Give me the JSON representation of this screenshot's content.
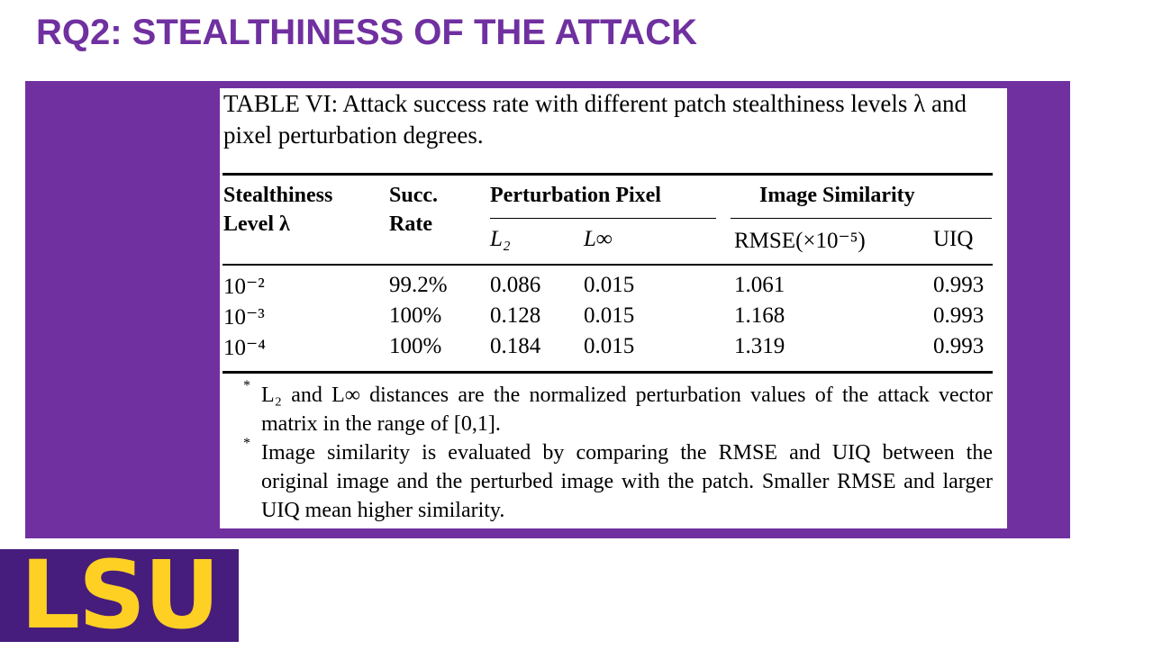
{
  "title": "RQ2: STEALTHINESS OF THE ATTACK",
  "table": {
    "caption": "TABLE VI: Attack success rate with different patch stealthiness levels λ and pixel perturbation degrees.",
    "header": {
      "stealthiness": "Stealthiness Level λ",
      "succ_rate": "Succ. Rate",
      "perturbation": "Perturbation Pixel",
      "similarity": "Image Similarity"
    },
    "subheader": [
      "L₂",
      "L∞",
      "RMSE(×10⁻⁵)",
      "UIQ"
    ],
    "rows": [
      [
        "10⁻²",
        "99.2%",
        "0.086",
        "0.015",
        "1.061",
        "0.993"
      ],
      [
        "10⁻³",
        "100%",
        "0.128",
        "0.015",
        "1.168",
        "0.993"
      ],
      [
        "10⁻⁴",
        "100%",
        "0.184",
        "0.015",
        "1.319",
        "0.993"
      ]
    ],
    "footnotes": [
      {
        "marker": "*",
        "text": "L₂ and L∞ distances are the normalized perturbation values of the attack vector matrix in the range of [0,1]."
      },
      {
        "marker": "*",
        "text": "Image similarity is evaluated by comparing the RMSE and UIQ between the original image and the perturbed image with the patch. Smaller RMSE and larger UIQ mean higher similarity."
      }
    ]
  },
  "logo": "LSU"
}
